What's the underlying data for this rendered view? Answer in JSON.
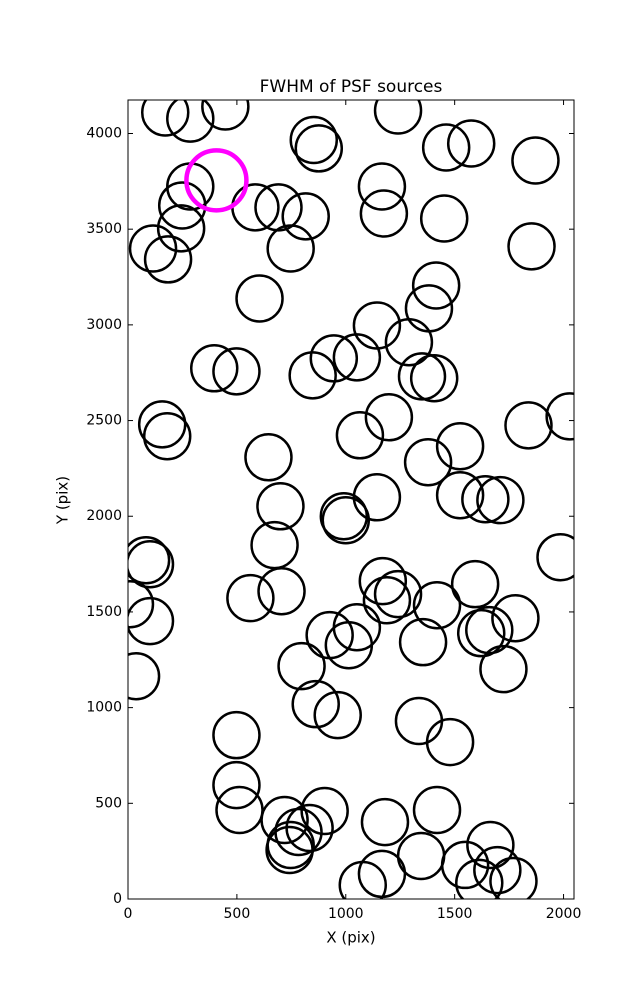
{
  "chart_data": {
    "type": "scatter",
    "title": "FWHM of PSF sources",
    "xlabel": "X (pix)",
    "ylabel": "Y (pix)",
    "xlim": [
      0,
      2048
    ],
    "ylim": [
      0,
      4175
    ],
    "xticks": [
      0,
      500,
      1000,
      1500,
      2000
    ],
    "yticks": [
      0,
      500,
      1000,
      1500,
      2000,
      2500,
      3000,
      3500,
      4000
    ],
    "grid": false,
    "series": [
      {
        "color": "#000000",
        "x": [
          171,
          286,
          447,
          1240,
          853,
          876,
          1461,
          1576,
          1871,
          286,
          249,
          244,
          585,
          691,
          816,
          1166,
          1175,
          1452,
          115,
          184,
          747,
          1853,
          1415,
          1382,
          604,
          1143,
          1290,
          945,
          1051,
          848,
          396,
          498,
          1350,
          1406,
          157,
          180,
          1065,
          1198,
          1839,
          2028,
          1525,
          1378,
          645,
          1143,
          1525,
          1641,
          1710,
          700,
          991,
          1000,
          673,
          83,
          101,
          1986,
          1170,
          1240,
          1189,
          1594,
          562,
          705,
          9,
          101,
          1419,
          1779,
          1051,
          926,
          1014,
          1622,
          1659,
          1355,
          37,
          797,
          1724,
          862,
          963,
          1336,
          1479,
          498,
          498,
          512,
          719,
          834,
          903,
          783,
          747,
          742,
          1180,
          1419,
          1346,
          1078,
          1166,
          1548,
          1664,
          1696,
          1613,
          1770
        ],
        "y": [
          4110,
          4078,
          4141,
          4120,
          3966,
          3922,
          3927,
          3948,
          3859,
          3723,
          3624,
          3504,
          3614,
          3614,
          3567,
          3723,
          3582,
          3556,
          3399,
          3342,
          3399,
          3410,
          3206,
          3086,
          3138,
          2997,
          2909,
          2825,
          2830,
          2736,
          2773,
          2757,
          2731,
          2721,
          2480,
          2418,
          2423,
          2517,
          2475,
          2522,
          2366,
          2282,
          2308,
          2099,
          2110,
          2089,
          2084,
          2052,
          2000,
          1979,
          1849,
          1770,
          1749,
          1786,
          1661,
          1593,
          1561,
          1645,
          1572,
          1608,
          1540,
          1452,
          1535,
          1467,
          1420,
          1379,
          1326,
          1389,
          1405,
          1342,
          1164,
          1217,
          1201,
          1018,
          961,
          930,
          820,
          856,
          595,
          465,
          413,
          371,
          460,
          350,
          282,
          256,
          402,
          465,
          225,
          73,
          131,
          178,
          282,
          151,
          84,
          94
        ]
      },
      {
        "color": "#ff00ff",
        "x": [
          406
        ],
        "y": [
          3755
        ]
      }
    ]
  }
}
